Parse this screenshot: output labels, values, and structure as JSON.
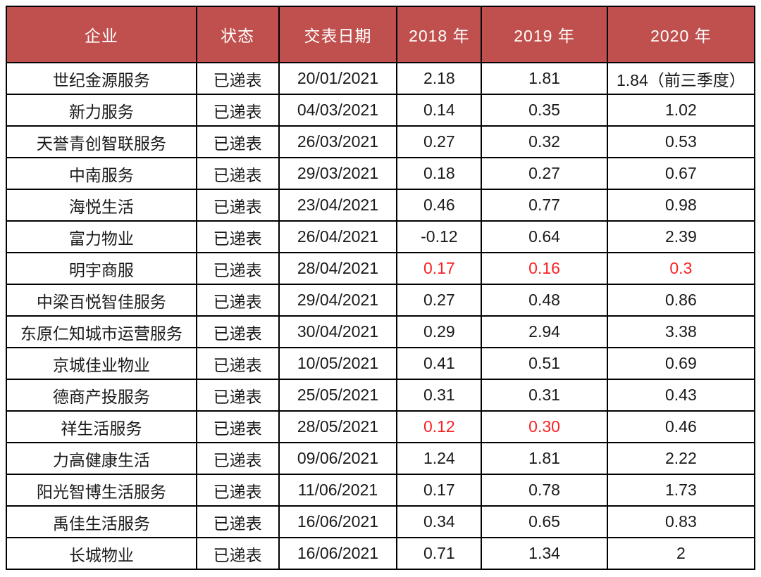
{
  "colors": {
    "header_bg": "#c0504d",
    "header_text": "#ffffff",
    "border": "#000000",
    "text": "#1a1a1a",
    "highlight_red": "#f82222",
    "page_bg": "#ffffff"
  },
  "chart_data": {
    "type": "table",
    "title": "",
    "columns": [
      "企业",
      "状态",
      "交表日期",
      "2018 年",
      "2019 年",
      "2020 年"
    ],
    "rows": [
      {
        "cells": [
          "世纪金源服务",
          "已递表",
          "20/01/2021",
          "2.18",
          "1.81",
          "1.84（前三季度）"
        ],
        "red_cells": []
      },
      {
        "cells": [
          "新力服务",
          "已递表",
          "04/03/2021",
          "0.14",
          "0.35",
          "1.02"
        ],
        "red_cells": []
      },
      {
        "cells": [
          "天誉青创智联服务",
          "已递表",
          "26/03/2021",
          "0.27",
          "0.32",
          "0.53"
        ],
        "red_cells": []
      },
      {
        "cells": [
          "中南服务",
          "已递表",
          "29/03/2021",
          "0.18",
          "0.27",
          "0.67"
        ],
        "red_cells": []
      },
      {
        "cells": [
          "海悦生活",
          "已递表",
          "23/04/2021",
          "0.46",
          "0.77",
          "0.98"
        ],
        "red_cells": []
      },
      {
        "cells": [
          "富力物业",
          "已递表",
          "26/04/2021",
          "-0.12",
          "0.64",
          "2.39"
        ],
        "red_cells": []
      },
      {
        "cells": [
          "明宇商服",
          "已递表",
          "28/04/2021",
          "0.17",
          "0.16",
          "0.3"
        ],
        "red_cells": [
          3,
          4,
          5
        ]
      },
      {
        "cells": [
          "中梁百悦智佳服务",
          "已递表",
          "29/04/2021",
          "0.27",
          "0.48",
          "0.86"
        ],
        "red_cells": []
      },
      {
        "cells": [
          "东原仁知城市运营服务",
          "已递表",
          "30/04/2021",
          "0.29",
          "2.94",
          "3.38"
        ],
        "red_cells": []
      },
      {
        "cells": [
          "京城佳业物业",
          "已递表",
          "10/05/2021",
          "0.41",
          "0.51",
          "0.69"
        ],
        "red_cells": []
      },
      {
        "cells": [
          "德商产投服务",
          "已递表",
          "25/05/2021",
          "0.31",
          "0.31",
          "0.43"
        ],
        "red_cells": []
      },
      {
        "cells": [
          "祥生活服务",
          "已递表",
          "28/05/2021",
          "0.12",
          "0.30",
          "0.46"
        ],
        "red_cells": [
          3,
          4
        ]
      },
      {
        "cells": [
          "力高健康生活",
          "已递表",
          "09/06/2021",
          "1.24",
          "1.81",
          "2.22"
        ],
        "red_cells": []
      },
      {
        "cells": [
          "阳光智博生活服务",
          "已递表",
          "11/06/2021",
          "0.17",
          "0.78",
          "1.73"
        ],
        "red_cells": []
      },
      {
        "cells": [
          "禹佳生活服务",
          "已递表",
          "16/06/2021",
          "0.34",
          "0.65",
          "0.83"
        ],
        "red_cells": []
      },
      {
        "cells": [
          "长城物业",
          "已递表",
          "16/06/2021",
          "0.71",
          "1.34",
          "2"
        ],
        "red_cells": []
      }
    ]
  }
}
